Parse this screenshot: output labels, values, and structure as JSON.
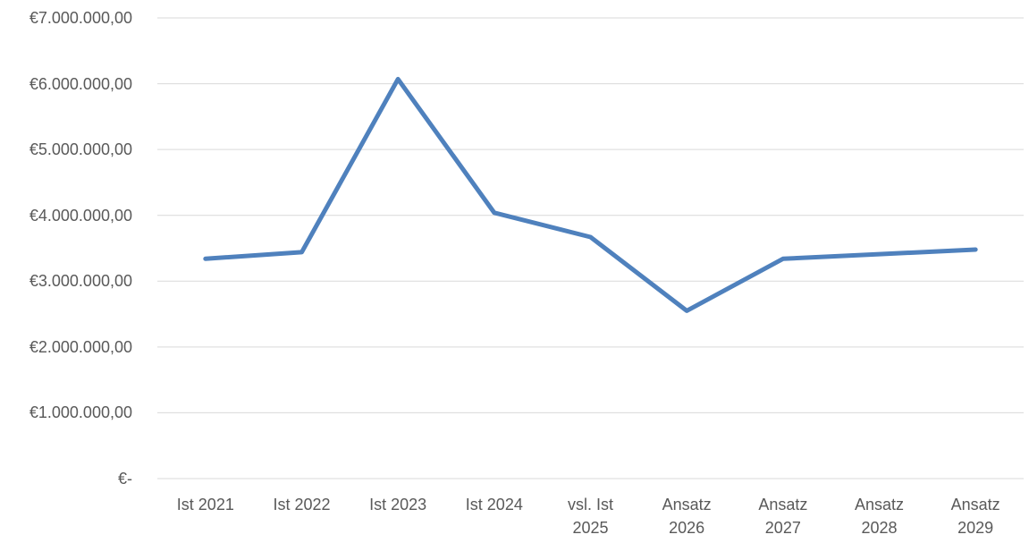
{
  "chart_data": {
    "type": "line",
    "categories": [
      "Ist 2021",
      "Ist 2022",
      "Ist 2023",
      "Ist 2024",
      "vsl. Ist 2025",
      "Ansatz 2026",
      "Ansatz 2027",
      "Ansatz 2028",
      "Ansatz 2029"
    ],
    "series": [
      {
        "color": "#4f81bd",
        "values": [
          3340000,
          3440000,
          6070000,
          4040000,
          3670000,
          2550000,
          3340000,
          3410000,
          3480000
        ]
      }
    ],
    "ylim": [
      0,
      7000000
    ],
    "yticks": [
      {
        "value": 0,
        "label": "€-"
      },
      {
        "value": 1000000,
        "label": "€1.000.000,00"
      },
      {
        "value": 2000000,
        "label": "€2.000.000,00"
      },
      {
        "value": 3000000,
        "label": "€3.000.000,00"
      },
      {
        "value": 4000000,
        "label": "€4.000.000,00"
      },
      {
        "value": 5000000,
        "label": "€5.000.000,00"
      },
      {
        "value": 6000000,
        "label": "€6.000.000,00"
      },
      {
        "value": 7000000,
        "label": "€7.000.000,00"
      }
    ],
    "grid": true
  }
}
